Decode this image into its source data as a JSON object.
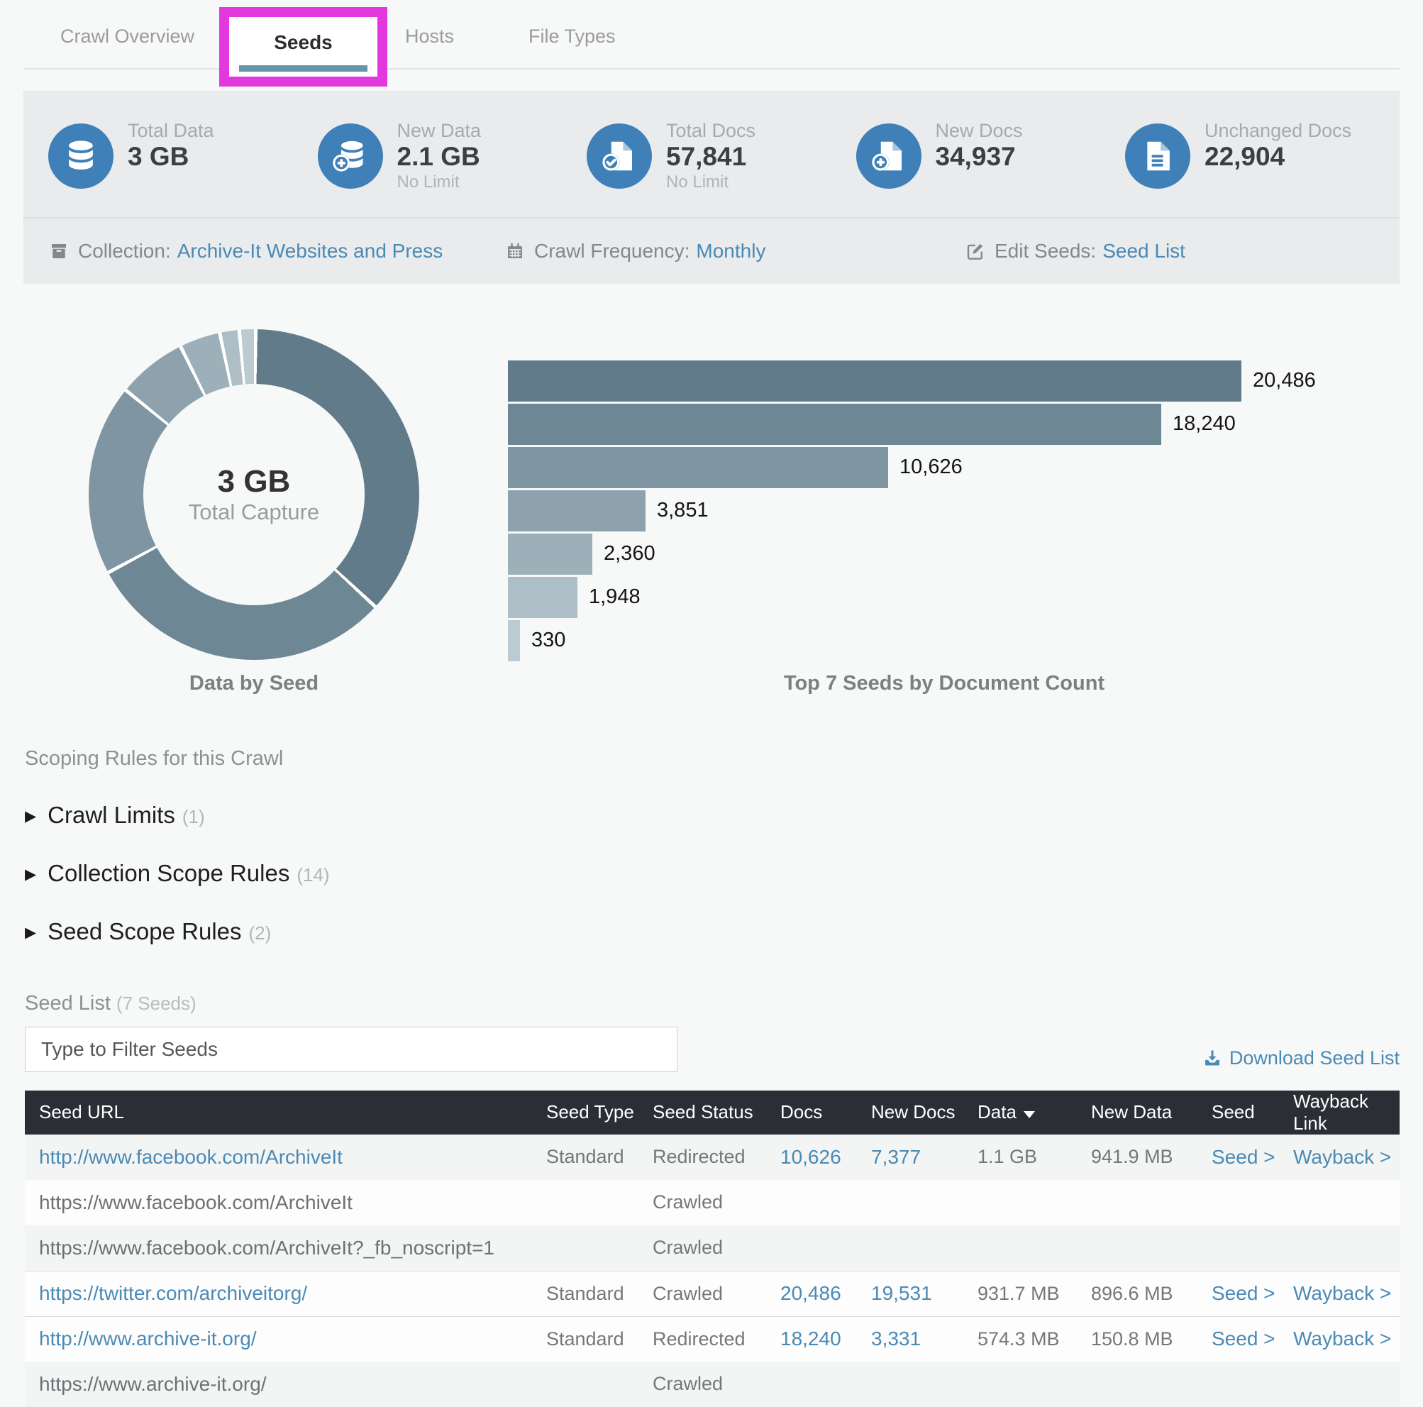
{
  "tabs": {
    "items": [
      {
        "label": "Crawl Overview",
        "active": false
      },
      {
        "label": "Seeds",
        "active": true
      },
      {
        "label": "Hosts",
        "active": false
      },
      {
        "label": "File Types",
        "active": false
      }
    ],
    "annotation_color": "#e438df",
    "active_underline_color": "#6495a8"
  },
  "stats": {
    "icon_color": "#4080b8",
    "items": [
      {
        "icon": "database-icon",
        "label": "Total Data",
        "value": "3 GB",
        "sublabel": ""
      },
      {
        "icon": "database-plus-icon",
        "label": "New Data",
        "value": "2.1 GB",
        "sublabel": "No Limit"
      },
      {
        "icon": "doc-check-icon",
        "label": "Total Docs",
        "value": "57,841",
        "sublabel": "No Limit"
      },
      {
        "icon": "doc-plus-icon",
        "label": "New Docs",
        "value": "34,937",
        "sublabel": ""
      },
      {
        "icon": "doc-lines-icon",
        "label": "Unchanged Docs",
        "value": "22,904",
        "sublabel": ""
      }
    ]
  },
  "info": {
    "collection_label": "Collection:",
    "collection_value": "Archive-It Websites and Press",
    "frequency_label": "Crawl Frequency:",
    "frequency_value": "Monthly",
    "edit_label": "Edit Seeds:",
    "edit_value": "Seed List"
  },
  "chart_data": [
    {
      "type": "pie",
      "donut": true,
      "title": "Data by Seed",
      "center_value": "3 GB",
      "center_label": "Total Capture",
      "unit": "percent share of total captured data per seed (estimated from arc angles)",
      "values": [
        36.7,
        30.3,
        18.7,
        6.8,
        4.0,
        1.9,
        1.6
      ],
      "colors": [
        "#617b8b",
        "#6e8795",
        "#7f95a2",
        "#8da2ad",
        "#9db0b9",
        "#adbec6",
        "#bccad1"
      ],
      "legend": "none"
    },
    {
      "type": "bar",
      "orientation": "horizontal",
      "title": "Top 7 Seeds by Document Count",
      "values": [
        20486,
        18240,
        10626,
        3851,
        2360,
        1948,
        330
      ],
      "labels": [
        "20,486",
        "18,240",
        "10,626",
        "3,851",
        "2,360",
        "1,948",
        "330"
      ],
      "xlim": [
        0,
        20486
      ],
      "colors": [
        "#617b8b",
        "#6e8795",
        "#7f95a2",
        "#8da2ad",
        "#9db0b9",
        "#adbec6",
        "#bccad1"
      ],
      "grid": false,
      "legend": "none"
    }
  ],
  "scoping": {
    "title": "Scoping Rules for this Crawl",
    "items": [
      {
        "label": "Crawl Limits",
        "count": "(1)"
      },
      {
        "label": "Collection Scope Rules",
        "count": "(14)"
      },
      {
        "label": "Seed Scope Rules",
        "count": "(2)"
      }
    ]
  },
  "seed_list": {
    "title": "Seed List",
    "count": "(7 Seeds)",
    "filter_placeholder": "Type to Filter Seeds",
    "download_label": "Download Seed List"
  },
  "table": {
    "columns": [
      "Seed URL",
      "Seed Type",
      "Seed Status",
      "Docs",
      "New Docs",
      "Data",
      "New Data",
      "Seed",
      "Wayback Link"
    ],
    "sorted_column": "Data",
    "sort_direction": "desc",
    "rows": [
      {
        "url": "http://www.facebook.com/ArchiveIt",
        "url_is_link": true,
        "type": "Standard",
        "status": "Redirected",
        "docs": "10,626",
        "new_docs": "7,377",
        "data": "1.1 GB",
        "new_data": "941.9 MB",
        "seed_link": "Seed >",
        "wayback_link": "Wayback >",
        "shaded": true,
        "group_start": false
      },
      {
        "url": "https://www.facebook.com/ArchiveIt",
        "url_is_link": false,
        "type": "",
        "status": "Crawled",
        "docs": "",
        "new_docs": "",
        "data": "",
        "new_data": "",
        "seed_link": "",
        "wayback_link": "",
        "shaded": false,
        "group_start": false
      },
      {
        "url": "https://www.facebook.com/ArchiveIt?_fb_noscript=1",
        "url_is_link": false,
        "type": "",
        "status": "Crawled",
        "docs": "",
        "new_docs": "",
        "data": "",
        "new_data": "",
        "seed_link": "",
        "wayback_link": "",
        "shaded": true,
        "group_start": false
      },
      {
        "url": "https://twitter.com/archiveitorg/",
        "url_is_link": true,
        "type": "Standard",
        "status": "Crawled",
        "docs": "20,486",
        "new_docs": "19,531",
        "data": "931.7 MB",
        "new_data": "896.6 MB",
        "seed_link": "Seed >",
        "wayback_link": "Wayback >",
        "shaded": false,
        "group_start": true
      },
      {
        "url": "http://www.archive-it.org/",
        "url_is_link": true,
        "type": "Standard",
        "status": "Redirected",
        "docs": "18,240",
        "new_docs": "3,331",
        "data": "574.3 MB",
        "new_data": "150.8 MB",
        "seed_link": "Seed >",
        "wayback_link": "Wayback >",
        "shaded": false,
        "group_start": true
      },
      {
        "url": "https://www.archive-it.org/",
        "url_is_link": false,
        "type": "",
        "status": "Crawled",
        "docs": "",
        "new_docs": "",
        "data": "",
        "new_data": "",
        "seed_link": "",
        "wayback_link": "",
        "shaded": true,
        "group_start": false
      }
    ]
  }
}
